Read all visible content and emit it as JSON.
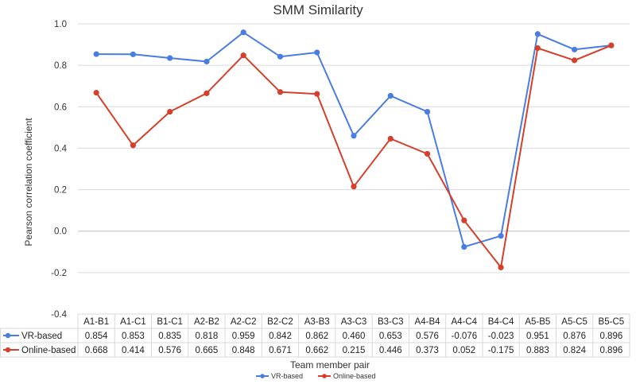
{
  "chart_data": {
    "type": "line",
    "title": "SMM Similarity",
    "xlabel": "Team member pair",
    "ylabel": "Pearson correlation coefficient",
    "ylim": [
      -0.4,
      1.0
    ],
    "yticks": [
      "1.0",
      "0.8",
      "0.6",
      "0.4",
      "0.2",
      "0.0",
      "-0.2",
      "-0.4"
    ],
    "grid": true,
    "legend": "bottom-center",
    "categories": [
      "A1-B1",
      "A1-C1",
      "B1-C1",
      "A2-B2",
      "A2-C2",
      "B2-C2",
      "A3-B3",
      "A3-C3",
      "B3-C3",
      "A4-B4",
      "A4-C4",
      "B4-C4",
      "A5-B5",
      "A5-C5",
      "B5-C5"
    ],
    "series": [
      {
        "name": "VR-based",
        "color": "#4a7de2",
        "values": [
          0.854,
          0.853,
          0.835,
          0.818,
          0.959,
          0.842,
          0.862,
          0.46,
          0.653,
          0.576,
          -0.076,
          -0.023,
          0.951,
          0.876,
          0.896
        ],
        "labels": [
          "0.854",
          "0.853",
          "0.835",
          "0.818",
          "0.959",
          "0.842",
          "0.862",
          "0.460",
          "0.653",
          "0.576",
          "-0.076",
          "-0.023",
          "0.951",
          "0.876",
          "0.896"
        ]
      },
      {
        "name": "Online-based",
        "color": "#d5402b",
        "values": [
          0.668,
          0.414,
          0.576,
          0.665,
          0.848,
          0.671,
          0.662,
          0.215,
          0.446,
          0.373,
          0.052,
          -0.175,
          0.883,
          0.824,
          0.896
        ],
        "labels": [
          "0.668",
          "0.414",
          "0.576",
          "0.665",
          "0.848",
          "0.671",
          "0.662",
          "0.215",
          "0.446",
          "0.373",
          "0.052",
          "-0.175",
          "0.883",
          "0.824",
          "0.896"
        ]
      }
    ]
  }
}
